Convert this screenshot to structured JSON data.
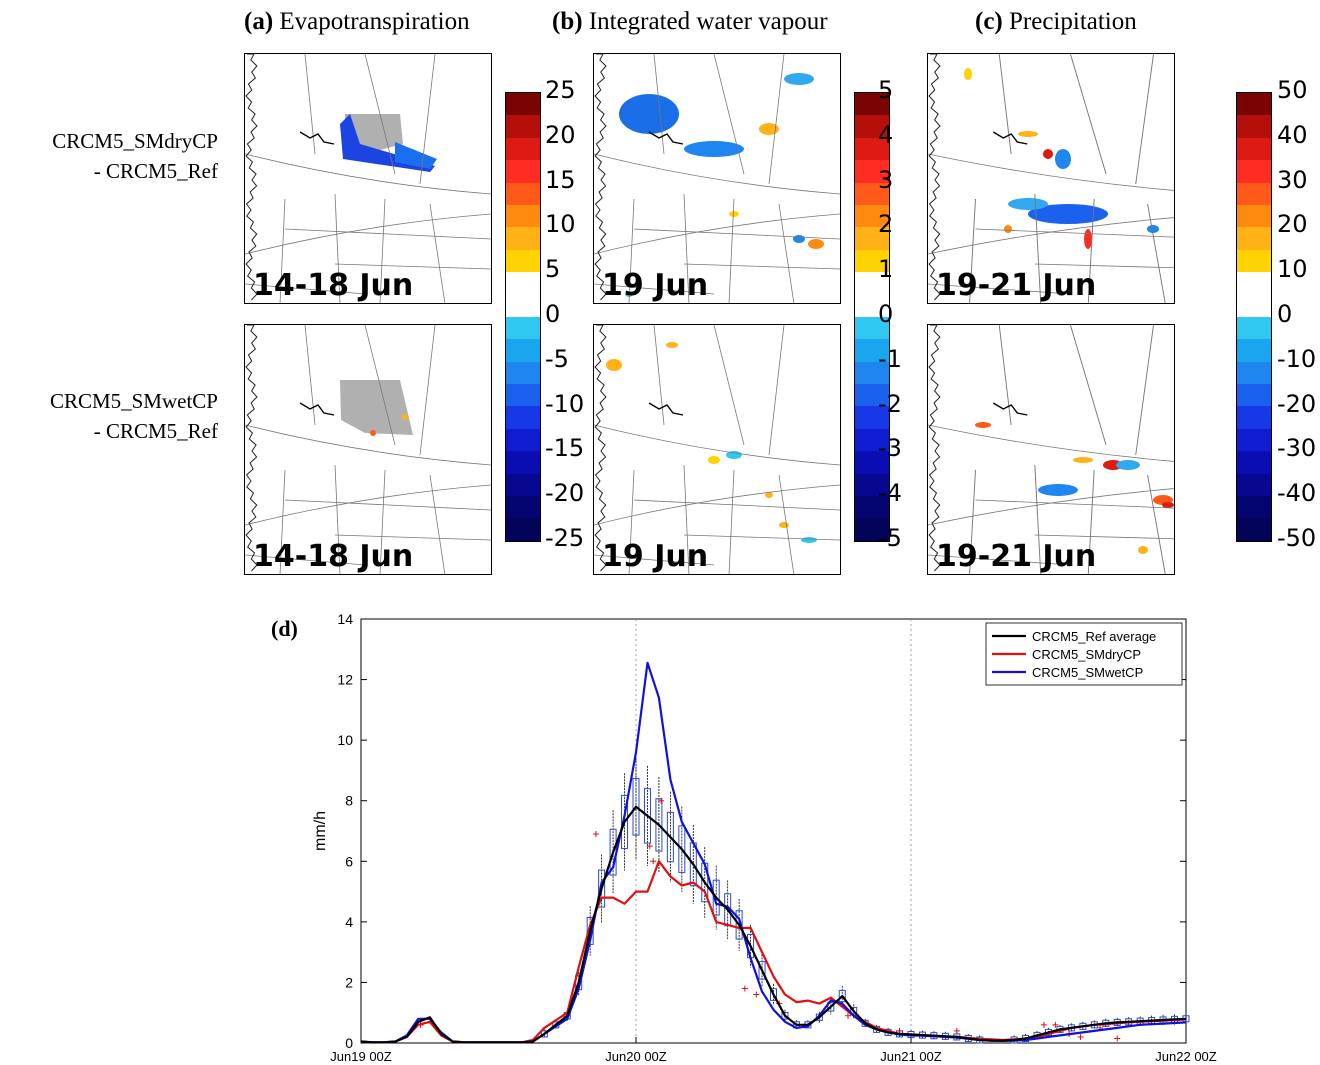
{
  "titles": [
    {
      "letter": "(a)",
      "text": " Evapotranspiration"
    },
    {
      "letter": "(b)",
      "text": " Integrated water vapour"
    },
    {
      "letter": "(c)",
      "text": " Precipitation"
    }
  ],
  "row_labels": [
    {
      "line1": "CRCM5_SMdryCP",
      "line2": "- CRCM5_Ref"
    },
    {
      "line1": "CRCM5_SMwetCP",
      "line2": "- CRCM5_Ref"
    }
  ],
  "map_dates": {
    "a": "14-18 Jun",
    "b": "19 Jun",
    "c": "19-21 Jun"
  },
  "colorbars": {
    "a": [
      "25",
      "20",
      "15",
      "10",
      "5",
      "0",
      "-5",
      "-10",
      "-15",
      "-20",
      "-25"
    ],
    "b": [
      "5",
      "4",
      "3",
      "2",
      "1",
      "0",
      "-1",
      "-2",
      "-3",
      "-4",
      "-5"
    ],
    "c": [
      "50",
      "40",
      "30",
      "20",
      "10",
      "0",
      "-10",
      "-20",
      "-30",
      "-40",
      "-50"
    ]
  },
  "colormap": [
    "#7a0403",
    "#b40f0a",
    "#dd1b14",
    "#ff2c24",
    "#ff5a1a",
    "#ff8a10",
    "#ffb215",
    "#ffd200",
    "#ffffff",
    "#ffffff",
    "#30c8f0",
    "#1aa6ee",
    "#1f86f0",
    "#1a62ee",
    "#1638e6",
    "#0f1cd0",
    "#0a0eb2",
    "#07088f",
    "#050572",
    "#04035a"
  ],
  "panel_d_label": "(d)",
  "chart_data": {
    "type": "line",
    "title": "",
    "xlabel": "",
    "ylabel": "mm/h",
    "ylim": [
      0,
      14
    ],
    "yticks": [
      "0",
      "2",
      "4",
      "6",
      "8",
      "10",
      "12",
      "14"
    ],
    "xlim_hours": [
      0,
      72
    ],
    "xticks": [
      "Jun19 00Z",
      "Jun20 00Z",
      "Jun21 00Z",
      "Jun22 00Z"
    ],
    "vlines_at": [
      "Jun20 00Z",
      "Jun21 00Z"
    ],
    "legend_position": "top-right",
    "colors": {
      "ref": "#000000",
      "dry": "#e01010",
      "wet": "#1010e0",
      "box": "#2a4bd0",
      "outlier": "#e01010"
    },
    "series": [
      {
        "name": "CRCM5_Ref average",
        "hours": [
          0,
          1,
          2,
          3,
          4,
          5,
          6,
          7,
          8,
          9,
          10,
          11,
          12,
          13,
          14,
          15,
          16,
          17,
          18,
          19,
          20,
          21,
          22,
          23,
          24,
          25,
          26,
          27,
          28,
          29,
          30,
          31,
          32,
          33,
          34,
          35,
          36,
          37,
          38,
          39,
          40,
          41,
          42,
          43,
          44,
          45,
          46,
          47,
          48,
          49,
          50,
          51,
          52,
          53,
          54,
          55,
          56,
          57,
          58,
          59,
          60,
          61,
          62,
          63,
          64,
          65,
          66,
          67,
          68,
          69,
          70,
          71,
          72
        ],
        "values": [
          0.05,
          0.02,
          0.02,
          0.05,
          0.2,
          0.7,
          0.85,
          0.3,
          0.05,
          0.02,
          0.02,
          0.02,
          0.02,
          0.02,
          0.02,
          0.05,
          0.3,
          0.6,
          0.9,
          2.0,
          3.7,
          5.1,
          6.3,
          7.3,
          7.8,
          7.5,
          7.2,
          6.8,
          6.4,
          5.9,
          5.3,
          4.8,
          4.4,
          3.9,
          3.2,
          2.4,
          1.6,
          0.9,
          0.6,
          0.6,
          0.85,
          1.2,
          1.55,
          1.05,
          0.65,
          0.45,
          0.35,
          0.3,
          0.28,
          0.26,
          0.24,
          0.22,
          0.2,
          0.15,
          0.1,
          0.08,
          0.08,
          0.1,
          0.15,
          0.25,
          0.35,
          0.45,
          0.5,
          0.55,
          0.6,
          0.65,
          0.68,
          0.7,
          0.72,
          0.74,
          0.76,
          0.78,
          0.8
        ]
      },
      {
        "name": "CRCM5_SMdryCP",
        "hours": [
          0,
          1,
          2,
          3,
          4,
          5,
          6,
          7,
          8,
          9,
          10,
          11,
          12,
          13,
          14,
          15,
          16,
          17,
          18,
          19,
          20,
          21,
          22,
          23,
          24,
          25,
          26,
          27,
          28,
          29,
          30,
          31,
          32,
          33,
          34,
          35,
          36,
          37,
          38,
          39,
          40,
          41,
          42,
          43,
          44,
          45,
          46,
          47,
          48,
          49,
          50,
          51,
          52,
          53,
          54,
          55,
          56,
          57,
          58,
          59,
          60,
          61,
          62,
          63,
          64,
          65,
          66,
          67,
          68,
          69,
          70,
          71,
          72
        ],
        "values": [
          0.04,
          0.02,
          0.02,
          0.05,
          0.2,
          0.6,
          0.7,
          0.25,
          0.05,
          0.02,
          0.02,
          0.02,
          0.02,
          0.02,
          0.02,
          0.1,
          0.5,
          0.75,
          1.0,
          2.5,
          3.9,
          4.8,
          4.8,
          4.6,
          5.0,
          5.0,
          6.0,
          5.5,
          5.2,
          5.3,
          5.0,
          4.0,
          3.9,
          3.8,
          3.8,
          3.0,
          2.2,
          1.6,
          1.35,
          1.4,
          1.3,
          1.5,
          1.2,
          0.9,
          0.7,
          0.5,
          0.4,
          0.3,
          0.28,
          0.26,
          0.24,
          0.22,
          0.2,
          0.17,
          0.14,
          0.12,
          0.1,
          0.12,
          0.15,
          0.2,
          0.3,
          0.4,
          0.5,
          0.55,
          0.6,
          0.62,
          0.65,
          0.68,
          0.7,
          0.72,
          0.74,
          0.76,
          0.78
        ]
      },
      {
        "name": "CRCM5_SMwetCP",
        "hours": [
          0,
          1,
          2,
          3,
          4,
          5,
          6,
          7,
          8,
          9,
          10,
          11,
          12,
          13,
          14,
          15,
          16,
          17,
          18,
          19,
          20,
          21,
          22,
          23,
          24,
          25,
          26,
          27,
          28,
          29,
          30,
          31,
          32,
          33,
          34,
          35,
          36,
          37,
          38,
          39,
          40,
          41,
          42,
          43,
          44,
          45,
          46,
          47,
          48,
          49,
          50,
          51,
          52,
          53,
          54,
          55,
          56,
          57,
          58,
          59,
          60,
          61,
          62,
          63,
          64,
          65,
          66,
          67,
          68,
          69,
          70,
          71,
          72
        ],
        "values": [
          0.05,
          0.02,
          0.02,
          0.05,
          0.25,
          0.8,
          0.8,
          0.35,
          0.05,
          0.02,
          0.02,
          0.02,
          0.02,
          0.02,
          0.02,
          0.05,
          0.3,
          0.55,
          0.8,
          1.8,
          3.4,
          5.3,
          5.8,
          7.5,
          9.6,
          12.55,
          11.4,
          8.7,
          7.3,
          6.6,
          5.9,
          4.6,
          4.5,
          4.1,
          2.8,
          1.7,
          1.1,
          0.7,
          0.5,
          0.55,
          0.9,
          1.4,
          1.3,
          0.9,
          0.6,
          0.45,
          0.35,
          0.28,
          0.25,
          0.24,
          0.22,
          0.2,
          0.18,
          0.14,
          0.1,
          0.08,
          0.07,
          0.08,
          0.1,
          0.15,
          0.2,
          0.25,
          0.3,
          0.35,
          0.4,
          0.45,
          0.5,
          0.55,
          0.6,
          0.62,
          0.64,
          0.66,
          0.68
        ]
      }
    ],
    "boxplot_range_hours": [
      14,
      72
    ],
    "outliers_red": [
      [
        5.2,
        0.6
      ],
      [
        20.5,
        6.9
      ],
      [
        25.5,
        6.0
      ],
      [
        26.2,
        8.0
      ],
      [
        25.2,
        6.5
      ],
      [
        36.5,
        1.3
      ],
      [
        42.5,
        0.9
      ],
      [
        47,
        0.4
      ],
      [
        52,
        0.4
      ],
      [
        59.6,
        0.6
      ],
      [
        60.6,
        0.6
      ],
      [
        61.8,
        0.3
      ],
      [
        62.8,
        0.2
      ],
      [
        64.5,
        0.5
      ],
      [
        66,
        0.15
      ],
      [
        33.5,
        1.8
      ],
      [
        34.5,
        1.6
      ]
    ]
  }
}
